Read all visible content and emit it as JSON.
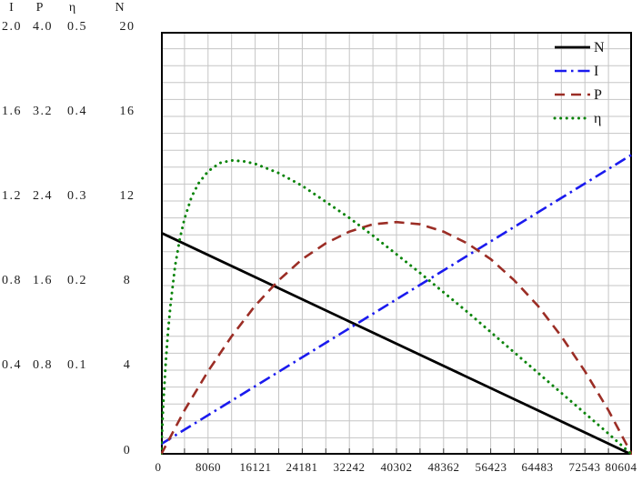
{
  "y_axis": {
    "columns": [
      "I",
      "P",
      "η",
      "N"
    ],
    "rows": [
      [
        "2.0",
        "4.0",
        "0.5",
        "20"
      ],
      [
        "1.6",
        "3.2",
        "0.4",
        "16"
      ],
      [
        "1.2",
        "2.4",
        "0.3",
        "12"
      ],
      [
        "0.8",
        "1.6",
        "0.2",
        "8"
      ],
      [
        "0.4",
        "0.8",
        "0.1",
        "4"
      ],
      [
        "",
        "",
        "",
        "0"
      ]
    ]
  },
  "x_axis": {
    "labels": [
      "0",
      "8060",
      "16121",
      "24181",
      "32242",
      "40302",
      "48362",
      "56423",
      "64483",
      "72543",
      "80604"
    ]
  },
  "chart_data": {
    "type": "line",
    "title": "",
    "x_axis": {
      "range": [
        0,
        80604
      ],
      "tick_labels": [
        0,
        8060,
        16121,
        24181,
        32242,
        40302,
        48362,
        56423,
        64483,
        72543,
        80604
      ]
    },
    "grid": {
      "visible": true,
      "x_divisions": 20,
      "y_divisions": 25
    },
    "legend": {
      "position": "top-right-inside",
      "entries": [
        "N",
        "I",
        "P",
        "η"
      ]
    },
    "y_axes": [
      {
        "name": "N",
        "range": [
          0,
          20
        ],
        "tick_labels": [
          "20",
          "16",
          "12",
          "8",
          "4",
          "0"
        ]
      },
      {
        "name": "I",
        "range": [
          0,
          2
        ],
        "tick_labels": [
          "2.0",
          "1.6",
          "1.2",
          "0.8",
          "0.4"
        ]
      },
      {
        "name": "P",
        "range": [
          0,
          4
        ],
        "tick_labels": [
          "4.0",
          "3.2",
          "2.4",
          "1.6",
          "0.8"
        ]
      },
      {
        "name": "η",
        "range": [
          0,
          0.5
        ],
        "tick_labels": [
          "0.5",
          "0.4",
          "0.3",
          "0.2",
          "0.1"
        ]
      }
    ],
    "series": [
      {
        "name": "N",
        "color": "#000000",
        "style": "solid",
        "width": 2.8,
        "range": [
          0,
          20
        ],
        "points": [
          [
            0,
            10.5
          ],
          [
            80604,
            0
          ]
        ]
      },
      {
        "name": "I",
        "color": "#1a1aee",
        "style": "dash-dot",
        "width": 2.6,
        "range": [
          0,
          2
        ],
        "points": [
          [
            0,
            0.05
          ],
          [
            80604,
            1.42
          ]
        ]
      },
      {
        "name": "P",
        "color": "#9b2d25",
        "style": "dashed",
        "width": 2.6,
        "range": [
          0,
          4
        ],
        "points": [
          [
            0,
            0
          ],
          [
            4030,
            0.42
          ],
          [
            8060,
            0.79
          ],
          [
            12091,
            1.12
          ],
          [
            16121,
            1.41
          ],
          [
            20151,
            1.65
          ],
          [
            24181,
            1.85
          ],
          [
            28211,
            2.0
          ],
          [
            32242,
            2.11
          ],
          [
            36272,
            2.18
          ],
          [
            40302,
            2.2
          ],
          [
            44332,
            2.18
          ],
          [
            48362,
            2.11
          ],
          [
            52393,
            2.0
          ],
          [
            56423,
            1.85
          ],
          [
            60453,
            1.65
          ],
          [
            64483,
            1.41
          ],
          [
            68513,
            1.12
          ],
          [
            72544,
            0.79
          ],
          [
            76574,
            0.42
          ],
          [
            80604,
            0
          ]
        ]
      },
      {
        "name": "η",
        "color": "#0a840a",
        "style": "dotted",
        "width": 3,
        "range": [
          0,
          0.5
        ],
        "points": [
          [
            0,
            0
          ],
          [
            403,
            0.061
          ],
          [
            806,
            0.108
          ],
          [
            1209,
            0.146
          ],
          [
            1612,
            0.176
          ],
          [
            2418,
            0.223
          ],
          [
            3224,
            0.255
          ],
          [
            4030,
            0.279
          ],
          [
            5239,
            0.305
          ],
          [
            6448,
            0.321
          ],
          [
            8060,
            0.335
          ],
          [
            10076,
            0.345
          ],
          [
            12091,
            0.348
          ],
          [
            14106,
            0.347
          ],
          [
            16121,
            0.344
          ],
          [
            20151,
            0.333
          ],
          [
            24181,
            0.318
          ],
          [
            28211,
            0.299
          ],
          [
            32242,
            0.28
          ],
          [
            36272,
            0.259
          ],
          [
            40302,
            0.237
          ],
          [
            44332,
            0.215
          ],
          [
            48362,
            0.192
          ],
          [
            52393,
            0.169
          ],
          [
            56423,
            0.145
          ],
          [
            60453,
            0.121
          ],
          [
            64483,
            0.097
          ],
          [
            68513,
            0.073
          ],
          [
            72544,
            0.049
          ],
          [
            76574,
            0.025
          ],
          [
            80604,
            0
          ]
        ]
      }
    ]
  }
}
